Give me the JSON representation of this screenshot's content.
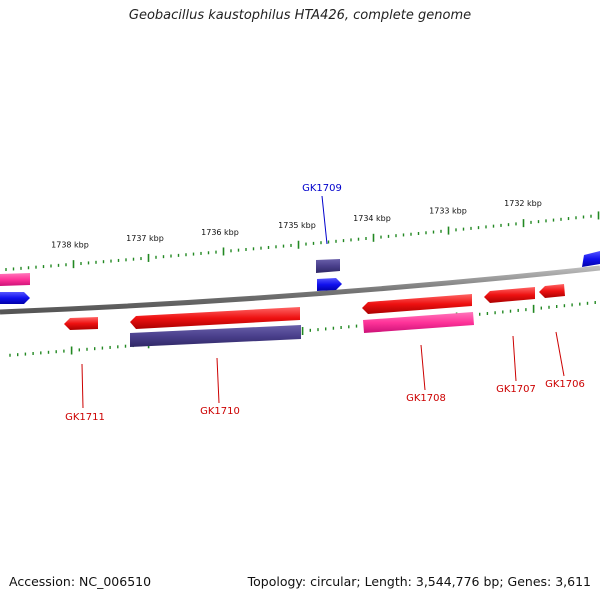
{
  "title": "Geobacillus kaustophilus HTA426, complete genome",
  "footer": {
    "accession": "Accession: NC_006510",
    "summary": "Topology: circular; Length: 3,544,776 bp; Genes: 3,611"
  },
  "colors": {
    "forward_gene": "#ee1111",
    "reverse_gene": "#ff3399",
    "reverse_gene_alt": "#4a3f8c",
    "small_gene": "#1111ee",
    "tick": "#228822",
    "backbone": "#888888",
    "red_label": "#cc0000",
    "blue_label": "#0000cc"
  },
  "scale": {
    "unit": "kbp",
    "labels": [
      {
        "kbp": 1738,
        "text": "1738 kbp"
      },
      {
        "kbp": 1737,
        "text": "1737 kbp"
      },
      {
        "kbp": 1736,
        "text": "1736 kbp"
      },
      {
        "kbp": 1735,
        "text": "1735 kbp"
      },
      {
        "kbp": 1734,
        "text": "1734 kbp"
      },
      {
        "kbp": 1733,
        "text": "1733 kbp"
      },
      {
        "kbp": 1732,
        "text": "1732 kbp"
      }
    ]
  },
  "genes": [
    {
      "name": "GK1711",
      "color": "red"
    },
    {
      "name": "GK1710",
      "color": "red"
    },
    {
      "name": "GK1709",
      "color": "blue"
    },
    {
      "name": "GK1708",
      "color": "red"
    },
    {
      "name": "GK1707",
      "color": "red"
    },
    {
      "name": "GK1706",
      "color": "red"
    }
  ]
}
